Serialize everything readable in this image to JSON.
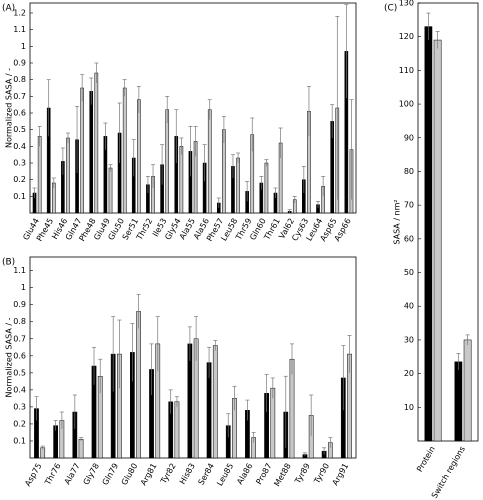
{
  "chart_data": [
    {
      "type": "bar",
      "panel_label": "(A)",
      "ylabel": "Normalized SASA / -",
      "categories": [
        "Glu44",
        "Phe45",
        "His46",
        "Gln47",
        "Phe48",
        "Glu49",
        "Glu50",
        "Ser51",
        "Thr52",
        "Ile53",
        "Gly54",
        "Ala55",
        "Ala56",
        "Phe57",
        "Leu58",
        "Thr59",
        "Gln60",
        "Thr61",
        "Val62",
        "Cys63",
        "Leu64",
        "Asp65",
        "Asp66"
      ],
      "series": [
        {
          "color": "#000000",
          "values": [
            0.12,
            0.63,
            0.31,
            0.44,
            0.73,
            0.46,
            0.48,
            0.33,
            0.17,
            0.29,
            0.46,
            0.37,
            0.3,
            0.06,
            0.28,
            0.13,
            0.18,
            0.12,
            0.01,
            0.2,
            0.05,
            0.55,
            0.97
          ],
          "errors": [
            0.03,
            0.17,
            0.08,
            0.2,
            0.08,
            0.08,
            0.18,
            0.11,
            0.05,
            0.12,
            0.16,
            0.15,
            0.11,
            0.03,
            0.07,
            0.06,
            0.04,
            0.03,
            0.01,
            0.08,
            0.02,
            0.1,
            0.28
          ]
        },
        {
          "color": "#c8c8c8",
          "values": [
            0.46,
            0.18,
            0.45,
            0.75,
            0.84,
            0.27,
            0.75,
            0.68,
            0.22,
            0.62,
            0.4,
            0.43,
            0.62,
            0.5,
            0.33,
            0.47,
            0.3,
            0.42,
            0.08,
            0.61,
            0.16,
            0.63,
            0.38
          ],
          "errors": [
            0.06,
            0.03,
            0.03,
            0.08,
            0.06,
            0.02,
            0.05,
            0.08,
            0.07,
            0.08,
            0.05,
            0.09,
            0.06,
            0.08,
            0.03,
            0.1,
            0.02,
            0.09,
            0.02,
            0.15,
            0.06,
            0.55,
            0.3
          ]
        }
      ],
      "ylim": [
        0,
        1.26
      ],
      "yticks": [
        0.1,
        0.2,
        0.3,
        0.4,
        0.5,
        0.6,
        0.7,
        0.8,
        0.9,
        1,
        1.1,
        1.2
      ]
    },
    {
      "type": "bar",
      "panel_label": "(B)",
      "ylabel": "Normalized SASA / -",
      "categories": [
        "Asp75",
        "Thr76",
        "Ala77",
        "Gly78",
        "Gln79",
        "Glu80",
        "Arg81",
        "Tyr82",
        "His83",
        "Ser84",
        "Leu85",
        "Ala86",
        "Pro87",
        "Met88",
        "Tyr89",
        "Tyr90",
        "Arg91"
      ],
      "series": [
        {
          "color": "#000000",
          "values": [
            0.29,
            0.19,
            0.27,
            0.54,
            0.61,
            0.62,
            0.52,
            0.33,
            0.67,
            0.56,
            0.19,
            0.28,
            0.38,
            0.27,
            0.02,
            0.04,
            0.47
          ],
          "errors": [
            0.07,
            0.03,
            0.1,
            0.11,
            0.22,
            0.17,
            0.15,
            0.07,
            0.1,
            0.09,
            0.07,
            0.06,
            0.11,
            0.21,
            0.01,
            0.02,
            0.19
          ]
        },
        {
          "color": "#c8c8c8",
          "values": [
            0.06,
            0.22,
            0.11,
            0.48,
            0.61,
            0.86,
            0.67,
            0.33,
            0.7,
            0.66,
            0.35,
            0.12,
            0.41,
            0.58,
            0.25,
            0.09,
            0.61
          ],
          "errors": [
            0.01,
            0.05,
            0.01,
            0.1,
            0.2,
            0.1,
            0.16,
            0.03,
            0.13,
            0.03,
            0.07,
            0.03,
            0.06,
            0.09,
            0.12,
            0.03,
            0.11
          ]
        }
      ],
      "ylim": [
        0,
        1.18
      ],
      "yticks": [
        0.1,
        0.2,
        0.3,
        0.4,
        0.5,
        0.6,
        0.7,
        0.8,
        0.9,
        1,
        1.1
      ]
    },
    {
      "type": "bar",
      "panel_label": "(C)",
      "ylabel": "SASA / nm²",
      "categories": [
        "Protein",
        "Switch regions"
      ],
      "series": [
        {
          "color": "#000000",
          "values": [
            123,
            23.5
          ],
          "errors": [
            4,
            2.5
          ]
        },
        {
          "color": "#c8c8c8",
          "values": [
            119,
            30
          ],
          "errors": [
            2.5,
            1.5
          ]
        }
      ],
      "ylim": [
        0,
        130
      ],
      "yticks": [
        10,
        20,
        30,
        40,
        50,
        60,
        70,
        80,
        90,
        100,
        110,
        120,
        130
      ]
    }
  ]
}
